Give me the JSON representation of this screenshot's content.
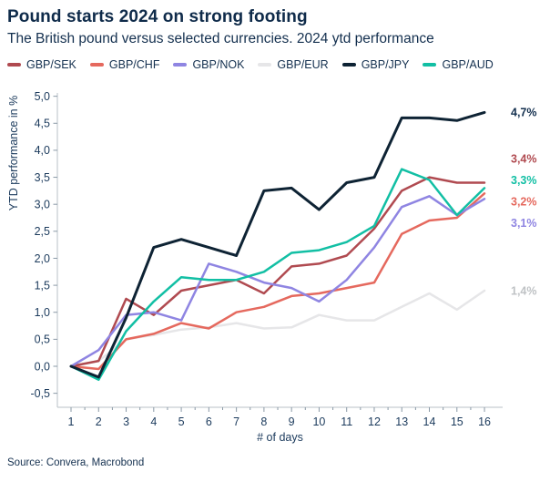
{
  "header": {
    "title": "Pound starts 2024 on strong footing",
    "subtitle": "The British pound versus selected currencies. 2024 ytd performance"
  },
  "legend": [
    {
      "label": "GBP/SEK",
      "color": "#b04a50"
    },
    {
      "label": "GBP/CHF",
      "color": "#e5695e"
    },
    {
      "label": "GBP/NOK",
      "color": "#8f85e2"
    },
    {
      "label": "GBP/EUR",
      "color": "#e6e6e8"
    },
    {
      "label": "GBP/JPY",
      "color": "#0e2334"
    },
    {
      "label": "GBP/AUD",
      "color": "#12bfa4"
    }
  ],
  "source": "Source: Convera, Macrobond",
  "colors": {
    "text_navy": "#14304f",
    "axis_line": "#b9c0c7",
    "tick": "#8a99a6"
  },
  "chart_data": {
    "type": "line",
    "title": "Pound starts 2024 on strong footing",
    "subtitle": "The British pound versus selected currencies. 2024 ytd performance",
    "xlabel": "# of days",
    "ylabel": "YTD performance in %",
    "x": [
      1,
      2,
      3,
      4,
      5,
      6,
      7,
      8,
      9,
      10,
      11,
      12,
      13,
      14,
      15,
      16
    ],
    "x_tick_labels": [
      "1",
      "2",
      "3",
      "4",
      "5",
      "6",
      "7",
      "8",
      "9",
      "10",
      "11",
      "12",
      "13",
      "14",
      "15",
      "16"
    ],
    "xlim": [
      1,
      16
    ],
    "ylim": [
      -0.5,
      5.0
    ],
    "grid": false,
    "legend_position": "top",
    "y_ticks": [
      {
        "value": 5.0,
        "label": "5,0"
      },
      {
        "value": 4.5,
        "label": "4,5"
      },
      {
        "value": 4.0,
        "label": "4,0"
      },
      {
        "value": 3.5,
        "label": "3,5"
      },
      {
        "value": 3.0,
        "label": "3,0"
      },
      {
        "value": 2.5,
        "label": "2,5"
      },
      {
        "value": 2.0,
        "label": "2,0"
      },
      {
        "value": 1.5,
        "label": "1,5"
      },
      {
        "value": 1.0,
        "label": "1,0"
      },
      {
        "value": 0.5,
        "label": "0,5"
      },
      {
        "value": 0.0,
        "label": "0,0"
      },
      {
        "value": -0.5,
        "label": "-0,5"
      }
    ],
    "series": [
      {
        "name": "GBP/EUR",
        "color": "#e6e6e8",
        "width": 2.5,
        "end_label": "1,4%",
        "end_label_color": "#bfc2c5",
        "values": [
          0.0,
          0.1,
          0.5,
          0.58,
          0.68,
          0.72,
          0.8,
          0.7,
          0.72,
          0.95,
          0.85,
          0.85,
          1.1,
          1.35,
          1.05,
          1.4
        ]
      },
      {
        "name": "GBP/CHF",
        "color": "#e5695e",
        "width": 2.5,
        "end_label": "3,2%",
        "end_label_color": "#e5695e",
        "values": [
          0.0,
          -0.05,
          0.5,
          0.6,
          0.8,
          0.7,
          1.0,
          1.1,
          1.3,
          1.35,
          1.45,
          1.55,
          2.45,
          2.7,
          2.75,
          3.2
        ]
      },
      {
        "name": "GBP/SEK",
        "color": "#b04a50",
        "width": 2.5,
        "end_label": "3,4%",
        "end_label_color": "#b04a50",
        "values": [
          0.0,
          0.1,
          1.25,
          0.95,
          1.4,
          1.5,
          1.6,
          1.35,
          1.85,
          1.9,
          2.05,
          2.55,
          3.25,
          3.5,
          3.4,
          3.4
        ]
      },
      {
        "name": "GBP/NOK",
        "color": "#8f85e2",
        "width": 2.5,
        "end_label": "3,1%",
        "end_label_color": "#8f85e2",
        "values": [
          0.0,
          0.3,
          0.95,
          1.0,
          0.85,
          1.9,
          1.75,
          1.55,
          1.45,
          1.2,
          1.6,
          2.2,
          2.95,
          3.15,
          2.8,
          3.1
        ]
      },
      {
        "name": "GBP/AUD",
        "color": "#12bfa4",
        "width": 2.5,
        "end_label": "3,3%",
        "end_label_color": "#12bfa4",
        "values": [
          0.0,
          -0.25,
          0.65,
          1.2,
          1.65,
          1.6,
          1.6,
          1.75,
          2.1,
          2.15,
          2.3,
          2.6,
          3.65,
          3.45,
          2.8,
          3.3
        ]
      },
      {
        "name": "GBP/JPY",
        "color": "#0e2334",
        "width": 3.0,
        "end_label": "4,7%",
        "end_label_color": "#14304f",
        "values": [
          0.0,
          -0.2,
          0.9,
          2.2,
          2.35,
          2.2,
          2.05,
          3.25,
          3.3,
          2.9,
          3.4,
          3.5,
          4.6,
          4.6,
          4.55,
          4.7
        ]
      }
    ]
  }
}
